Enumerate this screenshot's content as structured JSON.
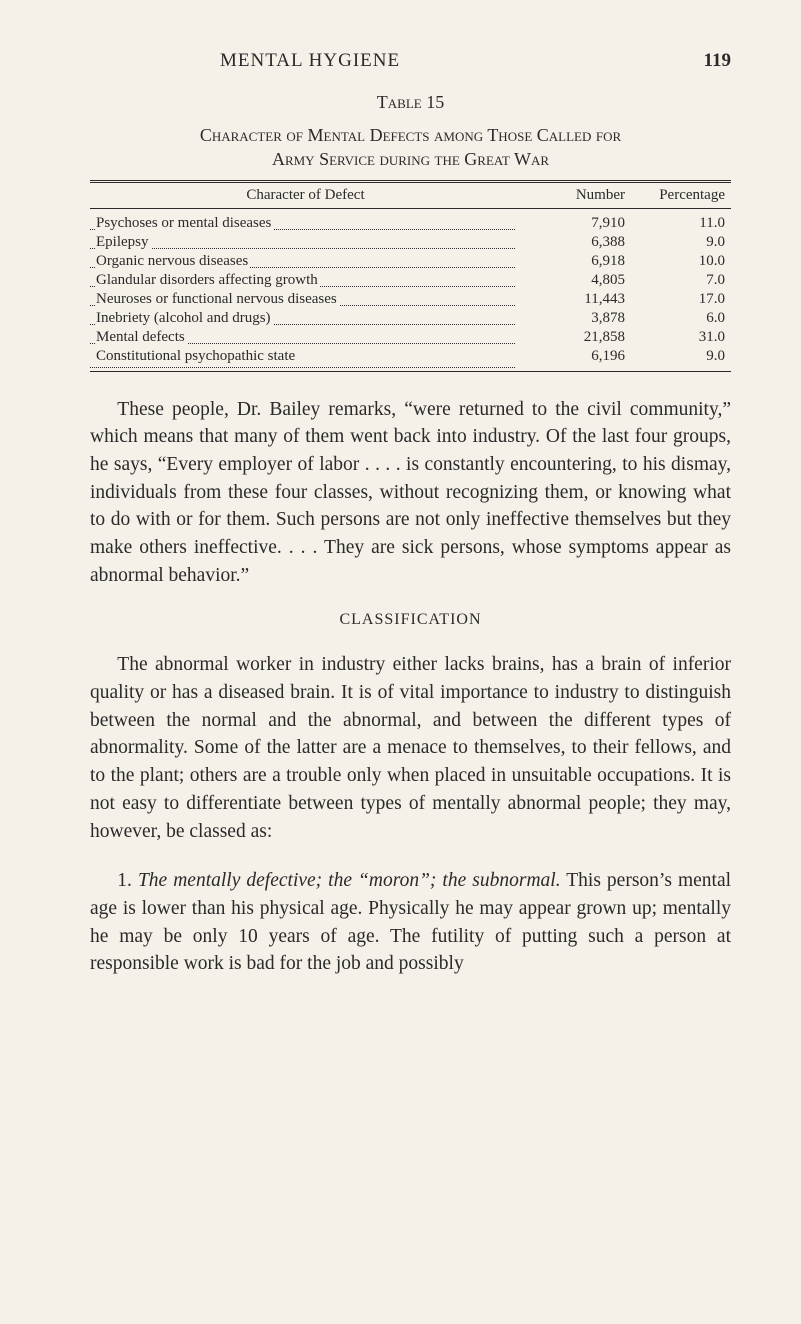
{
  "page": {
    "running_head": "MENTAL HYGIENE",
    "page_number": "119"
  },
  "table": {
    "label": "Table 15",
    "title_line1": "Character of Mental Defects among Those Called for",
    "title_line2": "Army Service during the Great War",
    "columns": {
      "defect": "Character of Defect",
      "number": "Number",
      "percentage": "Percentage"
    },
    "rows": [
      {
        "defect": "Psychoses or mental diseases",
        "number": "7,910",
        "percentage": "11.0"
      },
      {
        "defect": "Epilepsy",
        "number": "6,388",
        "percentage": "9.0"
      },
      {
        "defect": "Organic nervous diseases",
        "number": "6,918",
        "percentage": "10.0"
      },
      {
        "defect": "Glandular disorders affecting growth",
        "number": "4,805",
        "percentage": "7.0"
      },
      {
        "defect": "Neuroses or functional nervous diseases",
        "number": "11,443",
        "percentage": "17.0"
      },
      {
        "defect": "Inebriety (alcohol and drugs)",
        "number": "3,878",
        "percentage": "6.0"
      },
      {
        "defect": "Mental defects",
        "number": "21,858",
        "percentage": "31.0"
      },
      {
        "defect": "Constitutional psychopathic state",
        "number": "6,196",
        "percentage": "9.0"
      }
    ],
    "styling": {
      "type": "table",
      "border_top": "double",
      "border_mid": "single",
      "border_bottom": "single",
      "font_size_pt": 15,
      "col_widths": [
        "auto",
        "110px",
        "100px"
      ],
      "alignment": [
        "left",
        "right",
        "right"
      ],
      "leader_dots": true,
      "background_color": "#f5f1e8",
      "text_color": "#2a2a2a"
    }
  },
  "paragraphs": {
    "p1": "These people, Dr. Bailey remarks, “were returned to the civil community,” which means that many of them went back into industry. Of the last four groups, he says, “Every employer of labor . . . . is constantly encountering, to his dismay, individuals from these four classes, without recognizing them, or knowing what to do with or for them. Such persons are not only ineffective themselves but they make others ineffective. . . . They are sick persons, whose symptoms appear as abnormal behavior.”",
    "section_head": "CLASSIFICATION",
    "p2": "The abnormal worker in industry either lacks brains, has a brain of inferior quality or has a diseased brain. It is of vital importance to industry to distinguish between the normal and the abnormal, and between the different types of abnormality. Some of the latter are a menace to themselves, to their fellows, and to the plant; others are a trouble only when placed in unsuitable occupations. It is not easy to differentiate between types of mentally abnormal people; they may, however, be classed as:",
    "p3_lead": "1. ",
    "p3_italic": "The mentally defective; the “moron”; the subnormal.",
    "p3_rest": " This person’s mental age is lower than his physical age. Physically he may appear grown up; mentally he may be only 10 years of age. The futility of putting such a person at responsible work is bad for the job and possibly"
  }
}
